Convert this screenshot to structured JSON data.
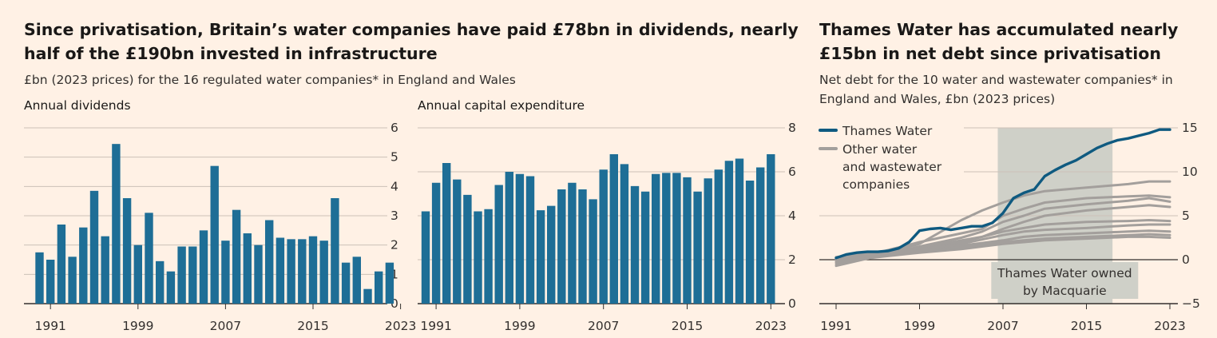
{
  "left_title": "Since privatisation, Britain’s water companies have paid £78bn in dividends, nearly half of the £190bn invested in infrastructure",
  "left_subtitle": "£bn (2023 prices) for the 16 regulated water companies* in England and Wales",
  "right_title": "Thames Water has accumulated nearly £15bn in net debt since privatisation",
  "right_subtitle": "Net debt for the 10 water and wastewater companies* in England and Wales, £bn (2023 prices)",
  "colors": {
    "bar": "#1e6e96",
    "thames": "#0f5a80",
    "others": "#a39f9c",
    "shade": "#cfd0c8",
    "grid": "#ccc1b7",
    "axis": "#33302e",
    "background": "#fff1e5"
  },
  "chart_data": [
    {
      "id": "dividends",
      "type": "bar",
      "title": "Annual dividends",
      "xlabel": "",
      "ylabel": "",
      "x": [
        1990,
        1991,
        1992,
        1993,
        1994,
        1995,
        1996,
        1997,
        1998,
        1999,
        2000,
        2001,
        2002,
        2003,
        2004,
        2005,
        2006,
        2007,
        2008,
        2009,
        2010,
        2011,
        2012,
        2013,
        2014,
        2015,
        2016,
        2017,
        2018,
        2019,
        2020,
        2021,
        2022,
        2023
      ],
      "values": [
        1.75,
        1.5,
        2.7,
        1.6,
        2.6,
        3.85,
        2.3,
        5.45,
        3.6,
        2.0,
        3.1,
        1.45,
        1.1,
        1.95,
        1.95,
        2.5,
        4.7,
        2.15,
        3.2,
        2.4,
        2.0,
        2.85,
        2.25,
        2.2,
        2.2,
        2.3,
        2.15,
        3.6,
        1.4,
        1.6,
        0.5,
        1.1,
        1.4,
        null
      ],
      "ylim": [
        0,
        6
      ],
      "yticks": [
        0,
        1,
        2,
        3,
        4,
        5,
        6
      ],
      "xticks": [
        1991,
        1999,
        2007,
        2015,
        2023
      ],
      "grid": true
    },
    {
      "id": "capex",
      "type": "bar",
      "title": "Annual capital expenditure",
      "xlabel": "",
      "ylabel": "",
      "x": [
        1990,
        1991,
        1992,
        1993,
        1994,
        1995,
        1996,
        1997,
        1998,
        1999,
        2000,
        2001,
        2002,
        2003,
        2004,
        2005,
        2006,
        2007,
        2008,
        2009,
        2010,
        2011,
        2012,
        2013,
        2014,
        2015,
        2016,
        2017,
        2018,
        2019,
        2020,
        2021,
        2022,
        2023
      ],
      "values": [
        4.2,
        5.5,
        6.4,
        5.65,
        4.95,
        4.2,
        4.3,
        5.4,
        6.0,
        5.9,
        5.8,
        4.25,
        4.45,
        5.2,
        5.5,
        5.2,
        4.75,
        6.1,
        6.8,
        6.35,
        5.35,
        5.1,
        5.9,
        5.95,
        5.95,
        5.75,
        5.1,
        5.7,
        6.1,
        6.5,
        6.6,
        5.6,
        6.2,
        6.8
      ],
      "ylim": [
        0,
        8
      ],
      "yticks": [
        0,
        2,
        4,
        6,
        8
      ],
      "xticks": [
        1991,
        1999,
        2007,
        2015,
        2023
      ],
      "grid": true
    },
    {
      "id": "net_debt",
      "type": "line",
      "title": "",
      "xlabel": "",
      "ylabel": "",
      "xlim": [
        1991,
        2023
      ],
      "ylim": [
        -5,
        15
      ],
      "yticks": [
        -5,
        0,
        5,
        10,
        15
      ],
      "xticks": [
        1991,
        1999,
        2007,
        2015,
        2023
      ],
      "grid": true,
      "legend": {
        "position": "top-left",
        "entries": [
          "Thames Water",
          "Other water and wastewater companies"
        ]
      },
      "shaded_region": {
        "from": 2006.5,
        "to": 2017.5,
        "label": "Thames Water owned by Macquarie"
      },
      "series": [
        {
          "name": "Thames Water",
          "highlight": true,
          "x": [
            1991,
            1992,
            1993,
            1994,
            1995,
            1996,
            1997,
            1998,
            1999,
            2000,
            2001,
            2002,
            2003,
            2004,
            2005,
            2006,
            2007,
            2008,
            2009,
            2010,
            2011,
            2012,
            2013,
            2014,
            2015,
            2016,
            2017,
            2018,
            2019,
            2020,
            2021,
            2022,
            2023
          ],
          "values": [
            0.2,
            0.6,
            0.8,
            0.9,
            0.9,
            1.0,
            1.3,
            2.0,
            3.3,
            3.5,
            3.6,
            3.4,
            3.6,
            3.8,
            3.8,
            4.2,
            5.3,
            7.0,
            7.6,
            8.0,
            9.5,
            10.2,
            10.8,
            11.3,
            12.0,
            12.7,
            13.2,
            13.6,
            13.8,
            14.1,
            14.4,
            14.8,
            14.8
          ]
        },
        {
          "name": "Other water and wastewater companies",
          "highlight": false,
          "x": [
            1991,
            1995,
            1999,
            2003,
            2005,
            2007,
            2009,
            2011,
            2015,
            2019,
            2021,
            2023
          ],
          "values": [
            -0.5,
            0.5,
            1.8,
            4.5,
            5.6,
            6.5,
            7.3,
            7.8,
            8.2,
            8.6,
            8.9,
            8.9
          ]
        },
        {
          "name": "Other water and wastewater companies",
          "highlight": false,
          "x": [
            1991,
            1995,
            1999,
            2003,
            2005,
            2007,
            2009,
            2011,
            2015,
            2019,
            2021,
            2023
          ],
          "values": [
            0.2,
            0.8,
            2.0,
            3.0,
            3.5,
            5.0,
            5.8,
            6.5,
            7.0,
            7.2,
            7.3,
            7.1
          ]
        },
        {
          "name": "Other water and wastewater companies",
          "highlight": false,
          "x": [
            1991,
            1995,
            1999,
            2003,
            2005,
            2007,
            2009,
            2011,
            2015,
            2019,
            2021,
            2023
          ],
          "values": [
            -0.7,
            0.4,
            1.5,
            2.5,
            3.2,
            4.3,
            5.0,
            5.8,
            6.3,
            6.7,
            7.0,
            6.6
          ]
        },
        {
          "name": "Other water and wastewater companies",
          "highlight": false,
          "x": [
            1991,
            1995,
            1999,
            2003,
            2005,
            2007,
            2009,
            2011,
            2015,
            2019,
            2021,
            2023
          ],
          "values": [
            0.0,
            0.6,
            1.3,
            2.0,
            2.6,
            3.5,
            4.3,
            5.0,
            5.6,
            6.0,
            6.2,
            6.0
          ]
        },
        {
          "name": "Other water and wastewater companies",
          "highlight": false,
          "x": [
            1991,
            1995,
            1999,
            2003,
            2005,
            2007,
            2009,
            2011,
            2015,
            2019,
            2021,
            2023
          ],
          "values": [
            0.1,
            0.7,
            1.4,
            2.2,
            2.6,
            3.2,
            3.6,
            4.0,
            4.3,
            4.4,
            4.5,
            4.4
          ]
        },
        {
          "name": "Other water and wastewater companies",
          "highlight": false,
          "x": [
            1991,
            1995,
            1999,
            2003,
            2005,
            2007,
            2009,
            2011,
            2015,
            2019,
            2021,
            2023
          ],
          "values": [
            -0.2,
            0.5,
            1.2,
            1.8,
            2.3,
            2.8,
            3.2,
            3.4,
            3.6,
            3.9,
            4.0,
            4.0
          ]
        },
        {
          "name": "Other water and wastewater companies",
          "highlight": false,
          "x": [
            1991,
            1995,
            1999,
            2003,
            2005,
            2007,
            2009,
            2011,
            2015,
            2019,
            2021,
            2023
          ],
          "values": [
            0.3,
            0.8,
            1.2,
            1.6,
            1.9,
            2.2,
            2.6,
            2.8,
            3.0,
            3.2,
            3.3,
            3.2
          ]
        },
        {
          "name": "Other water and wastewater companies",
          "highlight": false,
          "x": [
            1991,
            1995,
            1999,
            2003,
            2005,
            2007,
            2009,
            2011,
            2015,
            2019,
            2021,
            2023
          ],
          "values": [
            0.0,
            0.5,
            1.0,
            1.4,
            1.7,
            2.0,
            2.2,
            2.4,
            2.6,
            2.8,
            2.9,
            2.8
          ]
        },
        {
          "name": "Other water and wastewater companies",
          "highlight": false,
          "x": [
            1991,
            1995,
            1999,
            2003,
            2005,
            2007,
            2009,
            2011,
            2015,
            2019,
            2021,
            2023
          ],
          "values": [
            -0.3,
            0.3,
            0.8,
            1.2,
            1.5,
            1.8,
            2.0,
            2.2,
            2.4,
            2.6,
            2.6,
            2.5
          ]
        }
      ]
    }
  ]
}
